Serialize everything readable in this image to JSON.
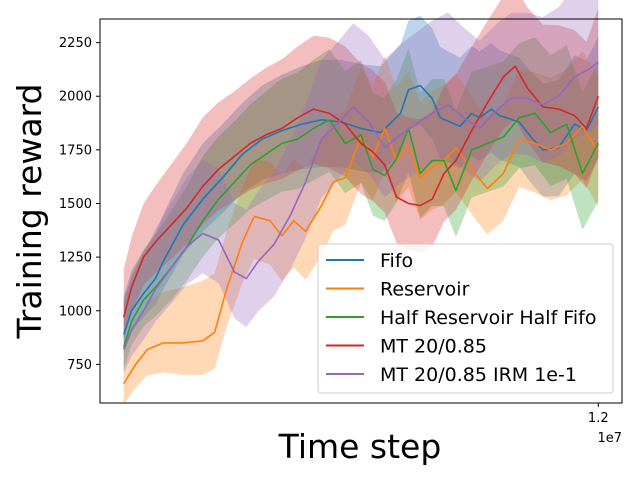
{
  "chart_data": {
    "type": "line",
    "title": "",
    "xlabel": "Time step",
    "ylabel": "Training reward",
    "x_offset_label": "1e7",
    "x_range": [
      -0.0585,
      1.2585
    ],
    "xlim": [
      -0.06,
      1.26
    ],
    "ylim": [
      570,
      2360
    ],
    "x_ticks": [
      {
        "value": 1.2,
        "label": "1.2"
      }
    ],
    "y_ticks": [
      {
        "value": 750,
        "label": "750"
      },
      {
        "value": 1000,
        "label": "1000"
      },
      {
        "value": 1250,
        "label": "1250"
      },
      {
        "value": 1500,
        "label": "1500"
      },
      {
        "value": 1750,
        "label": "1750"
      },
      {
        "value": 2000,
        "label": "2000"
      },
      {
        "value": 2250,
        "label": "2250"
      }
    ],
    "grid": false,
    "legend_position": "lower-right",
    "band_offsets": [
      [
        [
          0.0,
          -90
        ],
        [
          0.1,
          -130
        ],
        [
          0.2,
          -150
        ],
        [
          0.3,
          -180
        ],
        [
          0.4,
          -200
        ],
        [
          0.5,
          -220
        ],
        [
          0.6,
          -200
        ],
        [
          0.7,
          -180
        ],
        [
          0.8,
          -190
        ],
        [
          0.9,
          -200
        ],
        [
          1.0,
          -210
        ],
        [
          1.2,
          -240
        ]
      ],
      [
        [
          0.0,
          180
        ],
        [
          0.1,
          220
        ],
        [
          0.2,
          260
        ],
        [
          0.3,
          240
        ],
        [
          0.4,
          260
        ],
        [
          0.5,
          280
        ],
        [
          0.6,
          300
        ],
        [
          0.7,
          320
        ],
        [
          0.8,
          330
        ],
        [
          0.9,
          310
        ],
        [
          1.0,
          300
        ],
        [
          1.2,
          330
        ]
      ]
    ],
    "series": [
      {
        "name": "Fifo",
        "color": "#1f77b4",
        "points": [
          [
            0.0,
            890
          ],
          [
            0.02,
            1000
          ],
          [
            0.05,
            1080
          ],
          [
            0.08,
            1150
          ],
          [
            0.1,
            1230
          ],
          [
            0.15,
            1400
          ],
          [
            0.2,
            1520
          ],
          [
            0.25,
            1620
          ],
          [
            0.3,
            1730
          ],
          [
            0.35,
            1800
          ],
          [
            0.4,
            1840
          ],
          [
            0.45,
            1870
          ],
          [
            0.5,
            1890
          ],
          [
            0.55,
            1880
          ],
          [
            0.6,
            1850
          ],
          [
            0.65,
            1830
          ],
          [
            0.7,
            1920
          ],
          [
            0.72,
            2030
          ],
          [
            0.75,
            2050
          ],
          [
            0.78,
            1990
          ],
          [
            0.8,
            1900
          ],
          [
            0.85,
            1860
          ],
          [
            0.88,
            1920
          ],
          [
            0.9,
            1900
          ],
          [
            0.93,
            1940
          ],
          [
            0.95,
            1910
          ],
          [
            1.0,
            1880
          ],
          [
            1.03,
            1810
          ],
          [
            1.06,
            1750
          ],
          [
            1.1,
            1760
          ],
          [
            1.14,
            1870
          ],
          [
            1.17,
            1840
          ],
          [
            1.2,
            1950
          ]
        ]
      },
      {
        "name": "Reservoir",
        "color": "#ff7f0e",
        "points": [
          [
            0.0,
            660
          ],
          [
            0.03,
            750
          ],
          [
            0.06,
            820
          ],
          [
            0.1,
            850
          ],
          [
            0.15,
            850
          ],
          [
            0.2,
            860
          ],
          [
            0.23,
            900
          ],
          [
            0.26,
            1100
          ],
          [
            0.3,
            1320
          ],
          [
            0.33,
            1440
          ],
          [
            0.37,
            1420
          ],
          [
            0.4,
            1350
          ],
          [
            0.43,
            1420
          ],
          [
            0.46,
            1370
          ],
          [
            0.5,
            1490
          ],
          [
            0.53,
            1600
          ],
          [
            0.56,
            1620
          ],
          [
            0.6,
            1810
          ],
          [
            0.63,
            1720
          ],
          [
            0.66,
            1850
          ],
          [
            0.69,
            1700
          ],
          [
            0.72,
            1770
          ],
          [
            0.75,
            1620
          ],
          [
            0.78,
            1670
          ],
          [
            0.81,
            1700
          ],
          [
            0.84,
            1760
          ],
          [
            0.88,
            1660
          ],
          [
            0.92,
            1570
          ],
          [
            0.96,
            1640
          ],
          [
            1.0,
            1800
          ],
          [
            1.04,
            1780
          ],
          [
            1.08,
            1750
          ],
          [
            1.12,
            1780
          ],
          [
            1.16,
            1860
          ],
          [
            1.2,
            1740
          ]
        ]
      },
      {
        "name": "Half Reservoir Half Fifo",
        "color": "#2ca02c",
        "points": [
          [
            0.0,
            830
          ],
          [
            0.02,
            950
          ],
          [
            0.05,
            1050
          ],
          [
            0.08,
            1110
          ],
          [
            0.12,
            1200
          ],
          [
            0.16,
            1300
          ],
          [
            0.2,
            1420
          ],
          [
            0.24,
            1520
          ],
          [
            0.28,
            1600
          ],
          [
            0.32,
            1680
          ],
          [
            0.36,
            1730
          ],
          [
            0.4,
            1780
          ],
          [
            0.44,
            1800
          ],
          [
            0.48,
            1850
          ],
          [
            0.52,
            1890
          ],
          [
            0.56,
            1780
          ],
          [
            0.6,
            1820
          ],
          [
            0.63,
            1660
          ],
          [
            0.66,
            1630
          ],
          [
            0.69,
            1710
          ],
          [
            0.72,
            1850
          ],
          [
            0.75,
            1640
          ],
          [
            0.78,
            1700
          ],
          [
            0.81,
            1700
          ],
          [
            0.84,
            1560
          ],
          [
            0.88,
            1750
          ],
          [
            0.92,
            1780
          ],
          [
            0.96,
            1810
          ],
          [
            1.0,
            1900
          ],
          [
            1.04,
            1920
          ],
          [
            1.08,
            1830
          ],
          [
            1.12,
            1870
          ],
          [
            1.16,
            1640
          ],
          [
            1.2,
            1780
          ]
        ]
      },
      {
        "name": "MT 20/0.85",
        "color": "#d62728",
        "points": [
          [
            0.0,
            970
          ],
          [
            0.02,
            1110
          ],
          [
            0.05,
            1250
          ],
          [
            0.08,
            1320
          ],
          [
            0.12,
            1400
          ],
          [
            0.16,
            1480
          ],
          [
            0.2,
            1580
          ],
          [
            0.24,
            1660
          ],
          [
            0.28,
            1720
          ],
          [
            0.32,
            1780
          ],
          [
            0.36,
            1820
          ],
          [
            0.4,
            1850
          ],
          [
            0.44,
            1900
          ],
          [
            0.48,
            1940
          ],
          [
            0.52,
            1920
          ],
          [
            0.56,
            1870
          ],
          [
            0.6,
            1780
          ],
          [
            0.63,
            1740
          ],
          [
            0.66,
            1680
          ],
          [
            0.69,
            1530
          ],
          [
            0.72,
            1500
          ],
          [
            0.75,
            1490
          ],
          [
            0.78,
            1520
          ],
          [
            0.81,
            1640
          ],
          [
            0.84,
            1700
          ],
          [
            0.88,
            1840
          ],
          [
            0.92,
            1970
          ],
          [
            0.96,
            2090
          ],
          [
            0.99,
            2140
          ],
          [
            1.02,
            2040
          ],
          [
            1.06,
            1950
          ],
          [
            1.1,
            1940
          ],
          [
            1.14,
            1910
          ],
          [
            1.17,
            1850
          ],
          [
            1.2,
            2000
          ]
        ]
      },
      {
        "name": "MT 20/0.85 IRM 1e-1",
        "color": "#9467bd",
        "points": [
          [
            0.0,
            820
          ],
          [
            0.02,
            910
          ],
          [
            0.05,
            1000
          ],
          [
            0.08,
            1100
          ],
          [
            0.12,
            1200
          ],
          [
            0.16,
            1300
          ],
          [
            0.2,
            1360
          ],
          [
            0.24,
            1330
          ],
          [
            0.28,
            1180
          ],
          [
            0.31,
            1150
          ],
          [
            0.34,
            1230
          ],
          [
            0.38,
            1310
          ],
          [
            0.42,
            1440
          ],
          [
            0.46,
            1600
          ],
          [
            0.5,
            1800
          ],
          [
            0.54,
            1870
          ],
          [
            0.58,
            1950
          ],
          [
            0.62,
            1880
          ],
          [
            0.66,
            1760
          ],
          [
            0.7,
            1820
          ],
          [
            0.74,
            1870
          ],
          [
            0.78,
            1920
          ],
          [
            0.82,
            1960
          ],
          [
            0.86,
            1900
          ],
          [
            0.9,
            1850
          ],
          [
            0.94,
            1930
          ],
          [
            0.98,
            1990
          ],
          [
            1.02,
            1990
          ],
          [
            1.06,
            1960
          ],
          [
            1.1,
            2000
          ],
          [
            1.14,
            2090
          ],
          [
            1.18,
            2130
          ],
          [
            1.2,
            2160
          ]
        ]
      }
    ]
  }
}
